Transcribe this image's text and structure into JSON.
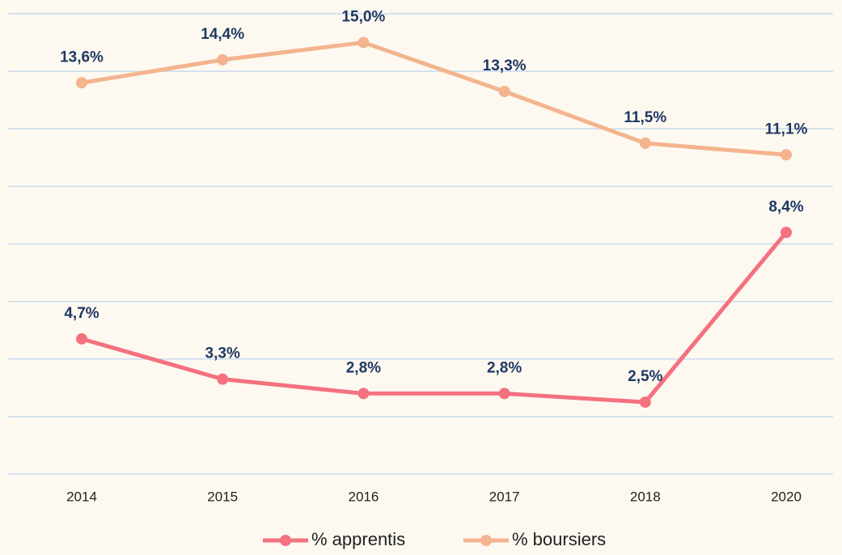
{
  "chart_data": {
    "type": "line",
    "categories": [
      "2014",
      "2015",
      "2016",
      "2017",
      "2018",
      "2020"
    ],
    "series": [
      {
        "name": "% apprentis",
        "color": "#f4717f",
        "values": [
          4.7,
          3.3,
          2.8,
          2.8,
          2.5,
          8.4
        ],
        "value_labels": [
          "4,7%",
          "3,3%",
          "2,8%",
          "2,8%",
          "2,5%",
          "8,4%"
        ]
      },
      {
        "name": "% boursiers",
        "color": "#f3b48e",
        "values": [
          13.6,
          14.4,
          15.0,
          13.3,
          11.5,
          11.1
        ],
        "value_labels": [
          "13,6%",
          "14,4%",
          "15,0%",
          "13,3%",
          "11,5%",
          "11,1%"
        ]
      }
    ],
    "ylim": [
      0,
      16
    ],
    "yticks": [
      0,
      2,
      4,
      6,
      8,
      10,
      12,
      14,
      16
    ],
    "grid": true,
    "grid_color": "#c9d9ef",
    "legend": "bottom",
    "label_color": "#1f3864"
  }
}
